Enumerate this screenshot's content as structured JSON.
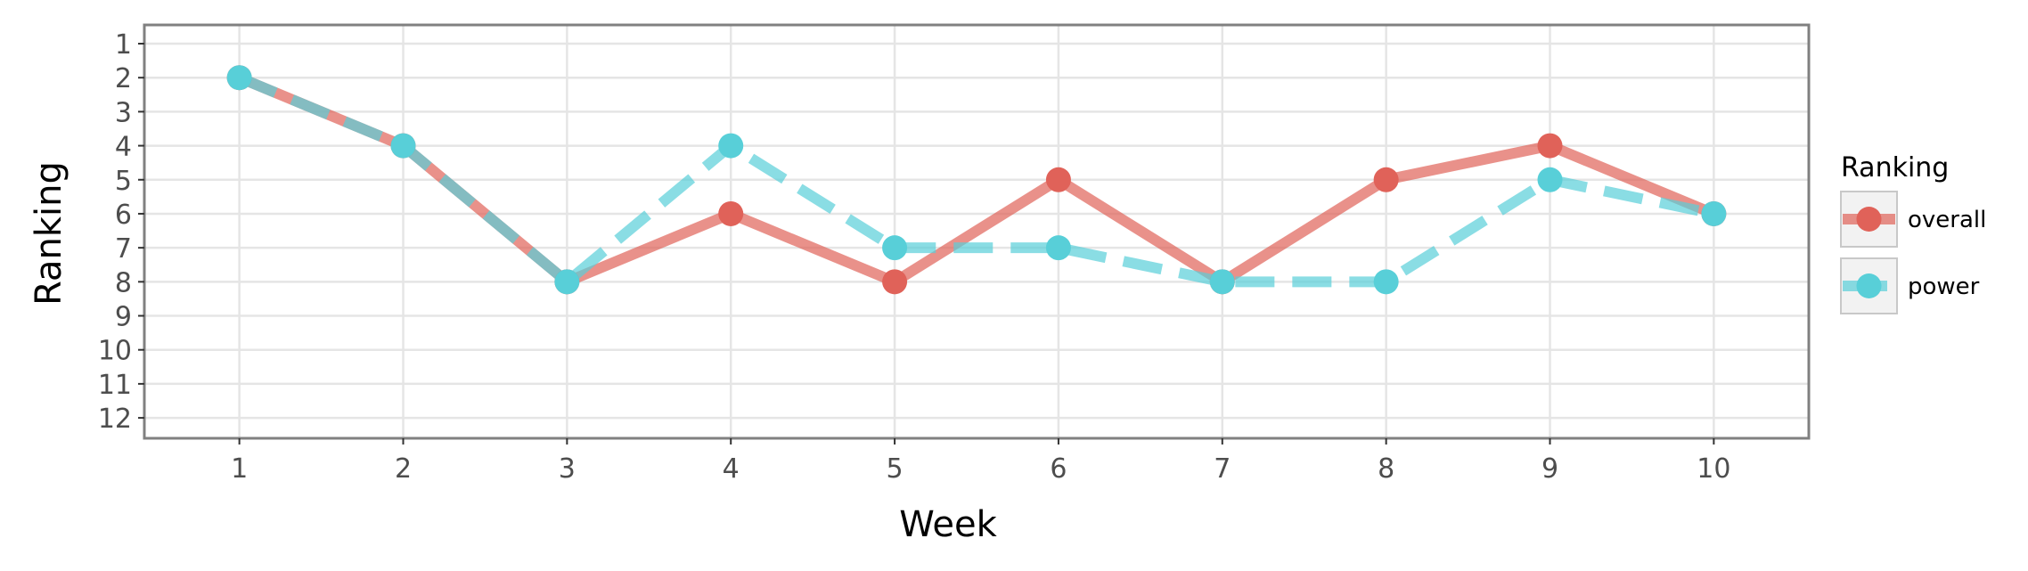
{
  "chart_data": {
    "type": "line",
    "xlabel": "Week",
    "ylabel": "Ranking",
    "x": [
      1,
      2,
      3,
      4,
      5,
      6,
      7,
      8,
      9,
      10
    ],
    "x_ticks": [
      "1",
      "2",
      "3",
      "4",
      "5",
      "6",
      "7",
      "8",
      "9",
      "10"
    ],
    "y_ticks": [
      "1",
      "2",
      "3",
      "4",
      "5",
      "6",
      "7",
      "8",
      "9",
      "10",
      "11",
      "12"
    ],
    "xlim": [
      0.42,
      10.58
    ],
    "ylim": [
      12.6,
      0.45
    ],
    "y_reversed": true,
    "grid": true,
    "legend": {
      "title": "Ranking",
      "position": "right"
    },
    "series": [
      {
        "name": "overall",
        "color": "#e06259",
        "line_style": "solid",
        "values": [
          2,
          4,
          8,
          6,
          8,
          5,
          8,
          5,
          4,
          6
        ]
      },
      {
        "name": "power",
        "color": "#58cfd8",
        "line_style": "dashed",
        "values": [
          2,
          4,
          8,
          4,
          7,
          7,
          8,
          8,
          5,
          6
        ]
      }
    ]
  }
}
